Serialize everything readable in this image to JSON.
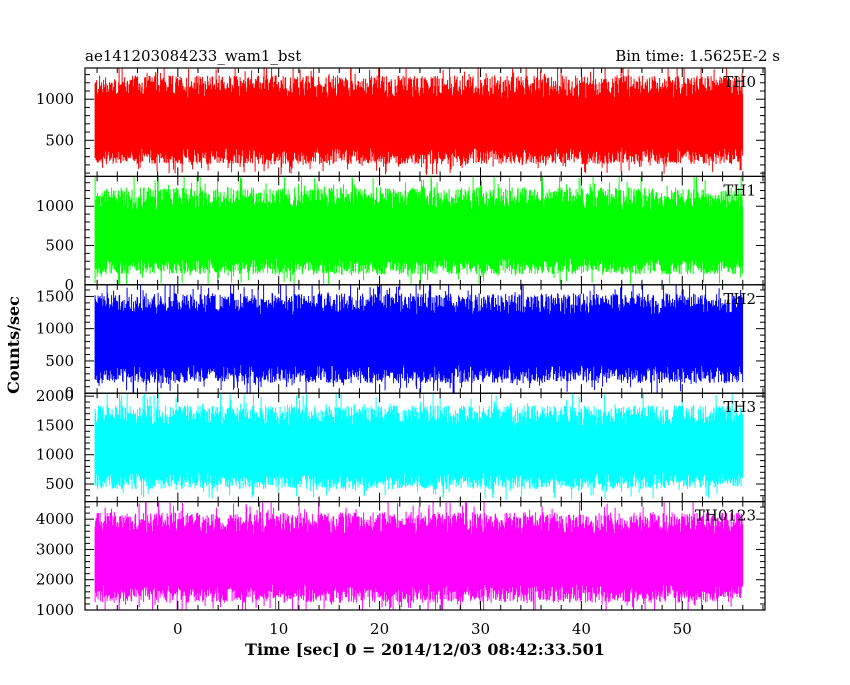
{
  "header": {
    "title": "ae141203084233_wam1_bst",
    "bin_time": "Bin time: 1.5625E-2 s"
  },
  "axes": {
    "ylabel": "Counts/sec",
    "xlabel": "Time [sec] 0 = 2014/12/03 08:42:33.501",
    "xlim": [
      -9.2,
      58.2
    ],
    "xticks": [
      0,
      10,
      20,
      30,
      40,
      50
    ],
    "x_minor_step": 2
  },
  "chart_data": {
    "type": "line",
    "x_range": [
      -8.2,
      56.0
    ],
    "bin_time_s": 0.015625,
    "panels": [
      {
        "name": "TH0",
        "color": "#ff0000",
        "ylim": [
          60,
          1380
        ],
        "yticks": [
          500,
          1000
        ],
        "y_minor_step": 100,
        "typical_range": [
          130,
          1380
        ],
        "median": 650
      },
      {
        "name": "TH1",
        "color": "#00ff00",
        "ylim": [
          0,
          1380
        ],
        "yticks": [
          0,
          500,
          1000
        ],
        "y_minor_step": 100,
        "typical_range": [
          50,
          1330
        ],
        "median": 600
      },
      {
        "name": "TH2",
        "color": "#0000ff",
        "ylim": [
          0,
          1680
        ],
        "yticks": [
          0,
          500,
          1000,
          1500
        ],
        "y_minor_step": 100,
        "typical_range": [
          40,
          1650
        ],
        "median": 800
      },
      {
        "name": "TH3",
        "color": "#00ffff",
        "ylim": [
          200,
          2050
        ],
        "yticks": [
          500,
          1000,
          1500,
          2000
        ],
        "y_minor_step": 100,
        "typical_range": [
          300,
          1950
        ],
        "median": 1050
      },
      {
        "name": "TH0123",
        "color": "#ff00ff",
        "ylim": [
          1000,
          4580
        ],
        "yticks": [
          1000,
          2000,
          3000,
          4000
        ],
        "y_minor_step": 200,
        "typical_range": [
          1000,
          4450
        ],
        "median": 2600
      }
    ]
  }
}
